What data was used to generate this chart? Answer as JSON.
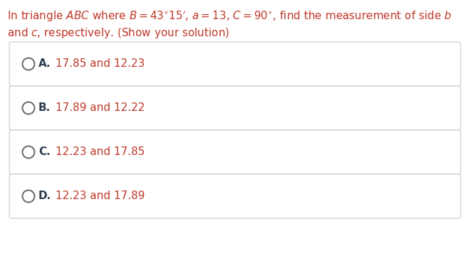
{
  "options": [
    {
      "letter": "A.",
      "text": "17.85 and 12.23"
    },
    {
      "letter": "B.",
      "text": "17.89 and 12.22"
    },
    {
      "letter": "C.",
      "text": "12.23 and 17.85"
    },
    {
      "letter": "D.",
      "text": "12.23 and 17.89"
    }
  ],
  "bg_color": "#ffffff",
  "box_edge_color": "#c8c8c8",
  "question_color": "#c0392b",
  "option_letter_color": "#2c3e50",
  "option_text_color": "#c0392b",
  "circle_color": "#666666",
  "fig_width": 6.6,
  "fig_height": 3.91,
  "dpi": 100
}
